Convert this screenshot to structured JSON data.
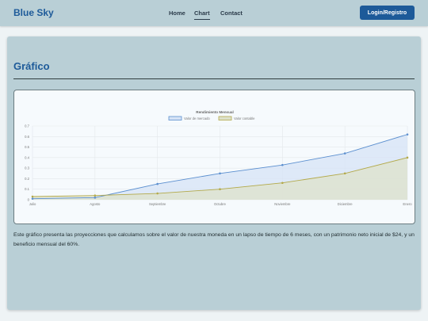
{
  "header": {
    "brand": "Blue Sky",
    "nav": [
      {
        "label": "Home",
        "active": false
      },
      {
        "label": "Chart",
        "active": true
      },
      {
        "label": "Contact",
        "active": false
      }
    ],
    "login_label": "Login/Registro"
  },
  "main": {
    "title": "Gráfico",
    "description": "Este gráfico presenta las proyecciones que calculamos sobre el valor de nuestra moneda en un lapso de tiempo de 6 meses, con un patrimonio neto inicial de $24, y un beneficio mensual del 60%."
  },
  "colors": {
    "series_market": "#5b8fcf",
    "series_market_fill": "#d6e3f6",
    "series_book": "#b3a94a",
    "series_book_fill": "#dde1cb"
  },
  "chart_data": {
    "type": "line",
    "title": "Rendimiento Mensual",
    "categories": [
      "Julio",
      "Agosto",
      "Septiembre",
      "Octubre",
      "Noviembre",
      "Diciembre",
      "Enero"
    ],
    "series": [
      {
        "name": "Valor de mercado",
        "values": [
          0.01,
          0.02,
          0.15,
          0.25,
          0.33,
          0.44,
          0.62
        ],
        "filled": true
      },
      {
        "name": "Valor contable",
        "values": [
          0.03,
          0.04,
          0.06,
          0.1,
          0.16,
          0.25,
          0.4
        ],
        "filled": true
      }
    ],
    "yticks": [
      "0",
      "0.1",
      "0.2",
      "0.3",
      "0.4",
      "0.5",
      "0.6",
      "0.7"
    ],
    "ylim": [
      0,
      0.7
    ],
    "legend": "top-center",
    "grid": true
  }
}
